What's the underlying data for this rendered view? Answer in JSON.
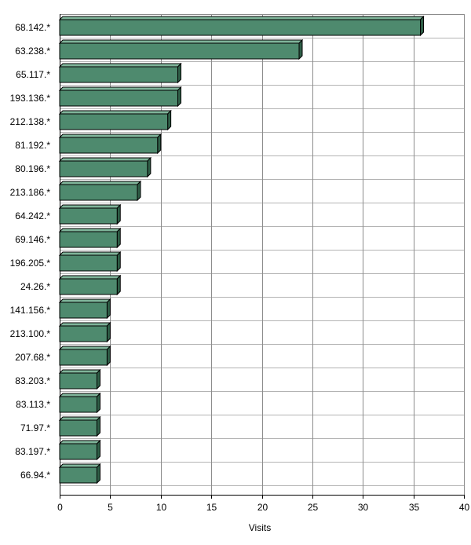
{
  "chart_data": {
    "type": "bar",
    "orientation": "horizontal",
    "categories": [
      "68.142.*",
      "63.238.*",
      "65.117.*",
      "193.136.*",
      "212.138.*",
      "81.192.*",
      "80.196.*",
      "213.186.*",
      "64.242.*",
      "69.146.*",
      "196.205.*",
      "24.26.*",
      "141.156.*",
      "213.100.*",
      "207.68.*",
      "83.203.*",
      "83.113.*",
      "71.97.*",
      "83.197.*",
      "66.94.*"
    ],
    "values": [
      36,
      24,
      12,
      12,
      11,
      10,
      9,
      8,
      6,
      6,
      6,
      6,
      5,
      5,
      5,
      4,
      4,
      4,
      4,
      4
    ],
    "xlabel": "Visits",
    "ylabel": "",
    "xlim": [
      0,
      40
    ],
    "xticks": [
      0,
      5,
      10,
      15,
      20,
      25,
      30,
      35,
      40
    ],
    "grid": true,
    "legend": "none",
    "bar_color": "#4e8a6e"
  }
}
